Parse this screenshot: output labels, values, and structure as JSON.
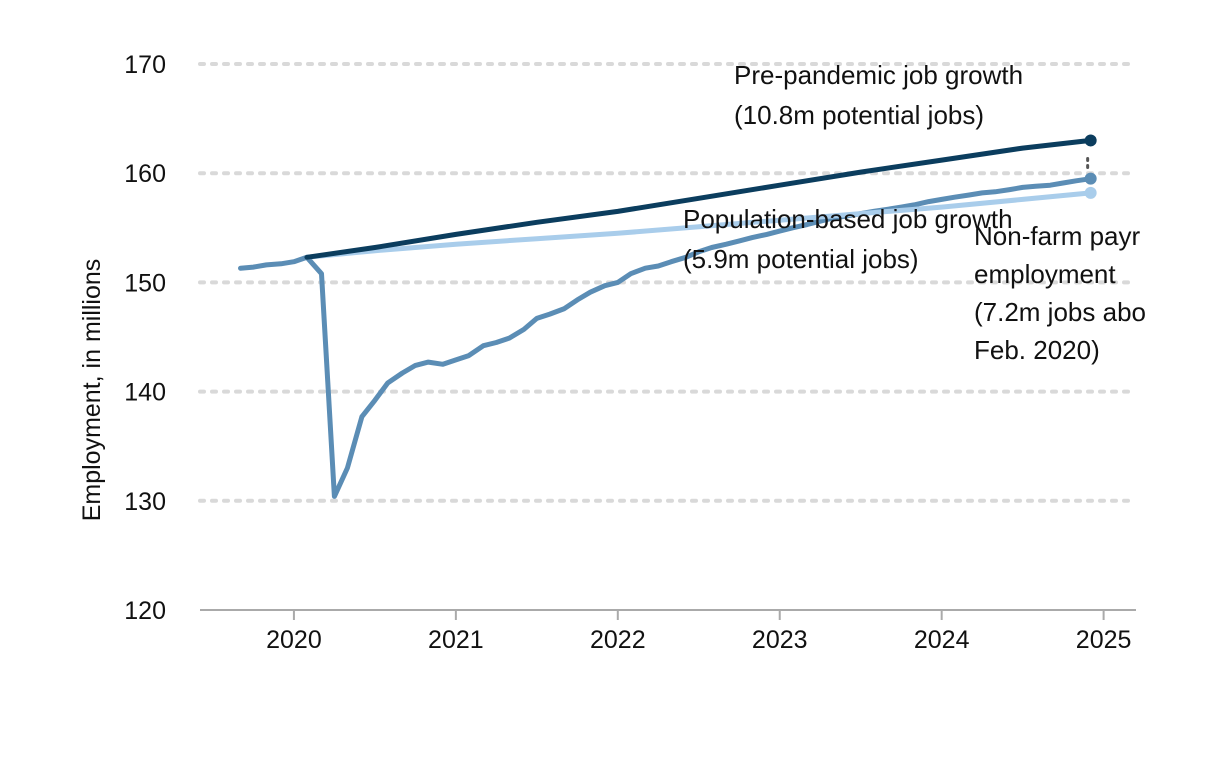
{
  "chart_data": {
    "type": "line",
    "ylabel": "Employment, in millions",
    "xlabel": "",
    "ylim": [
      120,
      170
    ],
    "yticks": [
      120,
      130,
      140,
      150,
      160,
      170
    ],
    "xlim": [
      2019.42,
      2025.2
    ],
    "xticks": [
      {
        "value": 2020.0,
        "label": "2020"
      },
      {
        "value": 2021.0,
        "label": "2021"
      },
      {
        "value": 2022.0,
        "label": "2022"
      },
      {
        "value": 2023.0,
        "label": "2023"
      },
      {
        "value": 2024.0,
        "label": "2024"
      },
      {
        "value": 2025.0,
        "label": "2025"
      }
    ],
    "grid": true,
    "colors": {
      "pre_pandemic": "#0b3d5e",
      "nonfarm": "#5b8db5",
      "population": "#a9cdeb",
      "gap": "#555555"
    },
    "series": [
      {
        "key": "pre_pandemic",
        "x": [
          2020.08,
          2020.5,
          2021.0,
          2021.5,
          2022.0,
          2022.5,
          2023.0,
          2023.5,
          2024.0,
          2024.5,
          2024.92
        ],
        "values": [
          152.3,
          153.2,
          154.4,
          155.5,
          156.5,
          157.7,
          158.9,
          160.1,
          161.2,
          162.3,
          163.0
        ]
      },
      {
        "key": "population",
        "x": [
          2020.08,
          2020.5,
          2021.0,
          2021.5,
          2022.0,
          2022.5,
          2023.0,
          2023.5,
          2024.0,
          2024.5,
          2024.92
        ],
        "values": [
          152.3,
          152.9,
          153.5,
          154.0,
          154.5,
          155.1,
          155.7,
          156.3,
          156.9,
          157.6,
          158.2
        ]
      },
      {
        "key": "nonfarm",
        "x": [
          2019.67,
          2019.75,
          2019.83,
          2019.92,
          2020.0,
          2020.08,
          2020.17,
          2020.25,
          2020.33,
          2020.42,
          2020.5,
          2020.58,
          2020.67,
          2020.75,
          2020.83,
          2020.92,
          2021.0,
          2021.08,
          2021.17,
          2021.25,
          2021.33,
          2021.42,
          2021.5,
          2021.58,
          2021.67,
          2021.75,
          2021.83,
          2021.92,
          2022.0,
          2022.08,
          2022.17,
          2022.25,
          2022.33,
          2022.42,
          2022.5,
          2022.58,
          2022.67,
          2022.75,
          2022.83,
          2022.92,
          2023.0,
          2023.08,
          2023.17,
          2023.25,
          2023.33,
          2023.42,
          2023.5,
          2023.58,
          2023.67,
          2023.75,
          2023.83,
          2023.92,
          2024.0,
          2024.08,
          2024.17,
          2024.25,
          2024.33,
          2024.42,
          2024.5,
          2024.58,
          2024.67,
          2024.75,
          2024.83,
          2024.92
        ],
        "values": [
          151.3,
          151.4,
          151.6,
          151.7,
          151.9,
          152.3,
          150.8,
          130.4,
          133.0,
          137.7,
          139.2,
          140.8,
          141.7,
          142.4,
          142.7,
          142.5,
          142.9,
          143.3,
          144.2,
          144.5,
          144.9,
          145.7,
          146.7,
          147.1,
          147.6,
          148.4,
          149.1,
          149.7,
          150.0,
          150.8,
          151.3,
          151.5,
          151.9,
          152.3,
          152.8,
          153.2,
          153.5,
          153.8,
          154.1,
          154.4,
          154.7,
          155.0,
          155.3,
          155.6,
          155.9,
          156.1,
          156.3,
          156.5,
          156.7,
          156.9,
          157.1,
          157.4,
          157.6,
          157.8,
          158.0,
          158.2,
          158.3,
          158.5,
          158.7,
          158.8,
          158.9,
          159.1,
          159.3,
          159.5
        ]
      }
    ],
    "annotations": {
      "pre_pandemic": [
        "Pre-pandemic job growth",
        "(10.8m potential jobs)"
      ],
      "population": [
        "Population-based job growth",
        "(5.9m potential jobs)"
      ],
      "nonfarm": [
        "Non-farm payr",
        "employment",
        "(7.2m jobs abo",
        "Feb. 2020)"
      ]
    }
  }
}
